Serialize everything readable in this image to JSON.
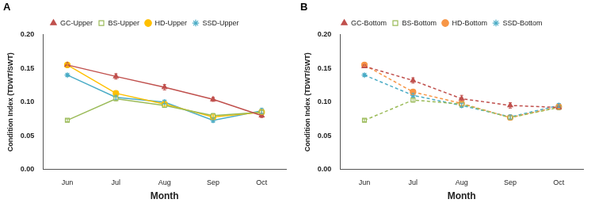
{
  "chart_data": [
    {
      "type": "line",
      "title": "A",
      "x_label": "Month",
      "y_label": "Condition Index (TDWT/SWT)",
      "categories": [
        "Jun",
        "Jul",
        "Aug",
        "Sep",
        "Oct"
      ],
      "ylim": [
        0,
        0.2
      ],
      "yticks": [
        {
          "value": 0,
          "label": "0.00"
        },
        {
          "value": 0.05,
          "label": "0.05"
        },
        {
          "value": 0.1,
          "label": "0.10"
        },
        {
          "value": 0.15,
          "label": "0.15"
        },
        {
          "value": 0.2,
          "label": "0.20"
        }
      ],
      "grid": false,
      "legend": "top",
      "series": [
        {
          "name": "GC-Upper",
          "color": "#c0504d",
          "marker": "triangle",
          "line_style": "solid",
          "values": [
            0.155,
            0.138,
            0.122,
            0.104,
            0.08
          ],
          "errors": [
            0.002,
            0.004,
            0.004,
            0.003,
            0.003
          ]
        },
        {
          "name": "BS-Upper",
          "color": "#9bbb59",
          "marker": "square",
          "line_style": "solid",
          "values": [
            0.073,
            0.105,
            0.095,
            0.08,
            0.085
          ],
          "errors": [
            0.002,
            0.003,
            0.003,
            0.003,
            0.003
          ]
        },
        {
          "name": "HD-Upper",
          "color": "#ffc000",
          "marker": "circle",
          "line_style": "solid",
          "values": [
            0.155,
            0.113,
            0.097,
            0.078,
            0.085
          ],
          "errors": [
            0.002,
            0.003,
            0.003,
            0.003,
            0.003
          ]
        },
        {
          "name": "SSD-Upper",
          "color": "#4bacc6",
          "marker": "star",
          "line_style": "solid",
          "values": [
            0.14,
            0.107,
            0.1,
            0.073,
            0.087
          ],
          "errors": [
            0.002,
            0.003,
            0.003,
            0.003,
            0.004
          ]
        }
      ]
    },
    {
      "type": "line",
      "title": "B",
      "x_label": "Month",
      "y_label": "Condition Index (TDWT/SWT)",
      "categories": [
        "Jun",
        "Jul",
        "Aug",
        "Sep",
        "Oct"
      ],
      "ylim": [
        0,
        0.2
      ],
      "yticks": [
        {
          "value": 0,
          "label": "0.00"
        },
        {
          "value": 0.05,
          "label": "0.05"
        },
        {
          "value": 0.1,
          "label": "0.10"
        },
        {
          "value": 0.15,
          "label": "0.15"
        },
        {
          "value": 0.2,
          "label": "0.20"
        }
      ],
      "grid": false,
      "legend": "top",
      "series": [
        {
          "name": "GC-Bottom",
          "color": "#c0504d",
          "marker": "triangle",
          "line_style": "dashed",
          "values": [
            0.153,
            0.132,
            0.105,
            0.095,
            0.092
          ],
          "errors": [
            0.002,
            0.004,
            0.005,
            0.004,
            0.003
          ]
        },
        {
          "name": "BS-Bottom",
          "color": "#9bbb59",
          "marker": "square",
          "line_style": "dashed",
          "values": [
            0.073,
            0.103,
            0.097,
            0.077,
            0.092
          ],
          "errors": [
            0.002,
            0.003,
            0.003,
            0.003,
            0.003
          ]
        },
        {
          "name": "HD-Bottom",
          "color": "#f79646",
          "marker": "circle",
          "line_style": "dashed",
          "values": [
            0.155,
            0.115,
            0.098,
            0.077,
            0.093
          ],
          "errors": [
            0.002,
            0.003,
            0.003,
            0.003,
            0.003
          ]
        },
        {
          "name": "SSD-Bottom",
          "color": "#4bacc6",
          "marker": "star",
          "line_style": "dashed",
          "values": [
            0.14,
            0.11,
            0.095,
            0.078,
            0.095
          ],
          "errors": [
            0.002,
            0.003,
            0.003,
            0.003,
            0.003
          ]
        }
      ]
    }
  ]
}
